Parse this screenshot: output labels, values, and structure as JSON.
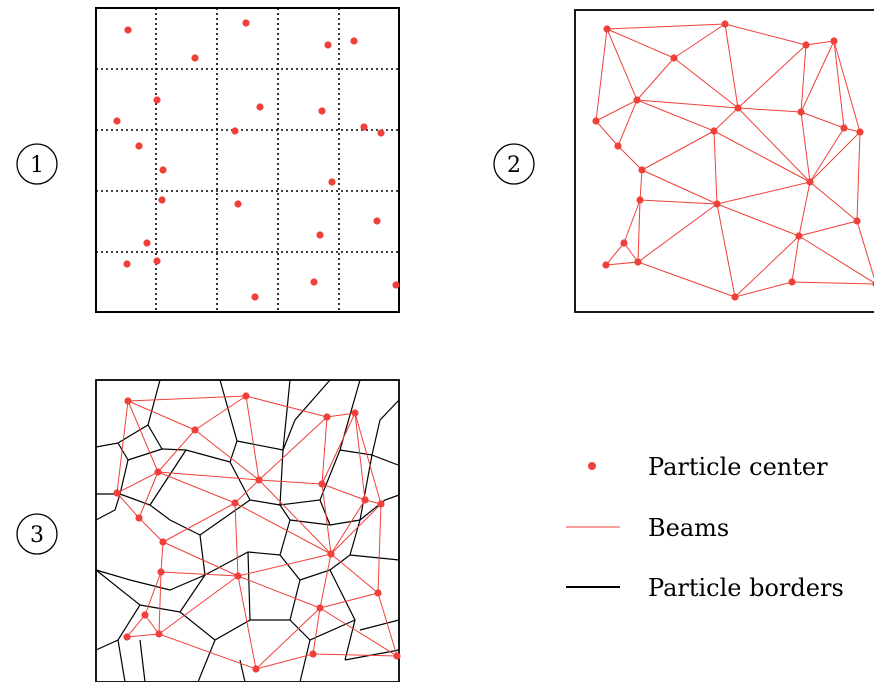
{
  "colors": {
    "particle": "#f0403a",
    "beam": "#f0403a",
    "border": "#000000",
    "grid": "#000000"
  },
  "panels": [
    {
      "step": "1",
      "type": "grid-with-particles"
    },
    {
      "step": "2",
      "type": "particles-with-beams"
    },
    {
      "step": "3",
      "type": "particles-beams-and-borders"
    }
  ],
  "legend": {
    "items": [
      {
        "name": "particle-center",
        "label": "Particle center"
      },
      {
        "name": "beams",
        "label": "Beams"
      },
      {
        "name": "particle-borders",
        "label": "Particle borders"
      }
    ]
  }
}
